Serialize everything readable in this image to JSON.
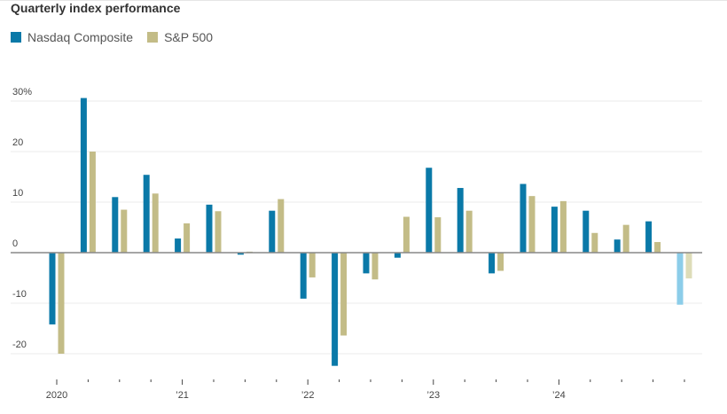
{
  "chart_data": {
    "type": "bar",
    "title": "Quarterly index performance",
    "xlabel": "",
    "ylabel": "",
    "ylim": [
      -24,
      32
    ],
    "yticks": [
      {
        "value": 30,
        "label": "30%"
      },
      {
        "value": 20,
        "label": "20"
      },
      {
        "value": 10,
        "label": "10"
      },
      {
        "value": 0,
        "label": "0"
      },
      {
        "value": -10,
        "label": "-10"
      },
      {
        "value": -20,
        "label": "-20"
      }
    ],
    "xticks": [
      {
        "quarter_index": 0,
        "label": "2020"
      },
      {
        "quarter_index": 4,
        "label": "’21"
      },
      {
        "quarter_index": 8,
        "label": "’22"
      },
      {
        "quarter_index": 12,
        "label": "’23"
      },
      {
        "quarter_index": 16,
        "label": "’24"
      }
    ],
    "categories": [
      "Q1 2020",
      "Q2 2020",
      "Q3 2020",
      "Q4 2020",
      "Q1 2021",
      "Q2 2021",
      "Q3 2021",
      "Q4 2021",
      "Q1 2022",
      "Q2 2022",
      "Q3 2022",
      "Q4 2022",
      "Q1 2023",
      "Q2 2023",
      "Q3 2023",
      "Q4 2023",
      "Q1 2024",
      "Q2 2024",
      "Q3 2024",
      "Q4 2024",
      "Q1 2025"
    ],
    "series": [
      {
        "name": "Nasdaq Composite",
        "color": "#0a79a8",
        "partial_color": "#8ccde9",
        "values": [
          -14.2,
          30.6,
          11.0,
          15.4,
          2.8,
          9.5,
          -0.4,
          8.3,
          -9.1,
          -22.4,
          -4.1,
          -1.0,
          16.8,
          12.8,
          -4.1,
          13.6,
          9.1,
          8.3,
          2.6,
          6.2,
          -10.3
        ]
      },
      {
        "name": "S&P 500",
        "color": "#c3bc87",
        "partial_color": "#dddcb8",
        "values": [
          -20.0,
          20.0,
          8.5,
          11.7,
          5.8,
          8.2,
          0.2,
          10.6,
          -4.9,
          -16.4,
          -5.3,
          7.1,
          7.0,
          8.3,
          -3.6,
          11.2,
          10.2,
          3.9,
          5.5,
          2.1,
          -5.1
        ]
      }
    ],
    "partial_last_quarter": true,
    "grid": true,
    "legend": "top-left"
  }
}
